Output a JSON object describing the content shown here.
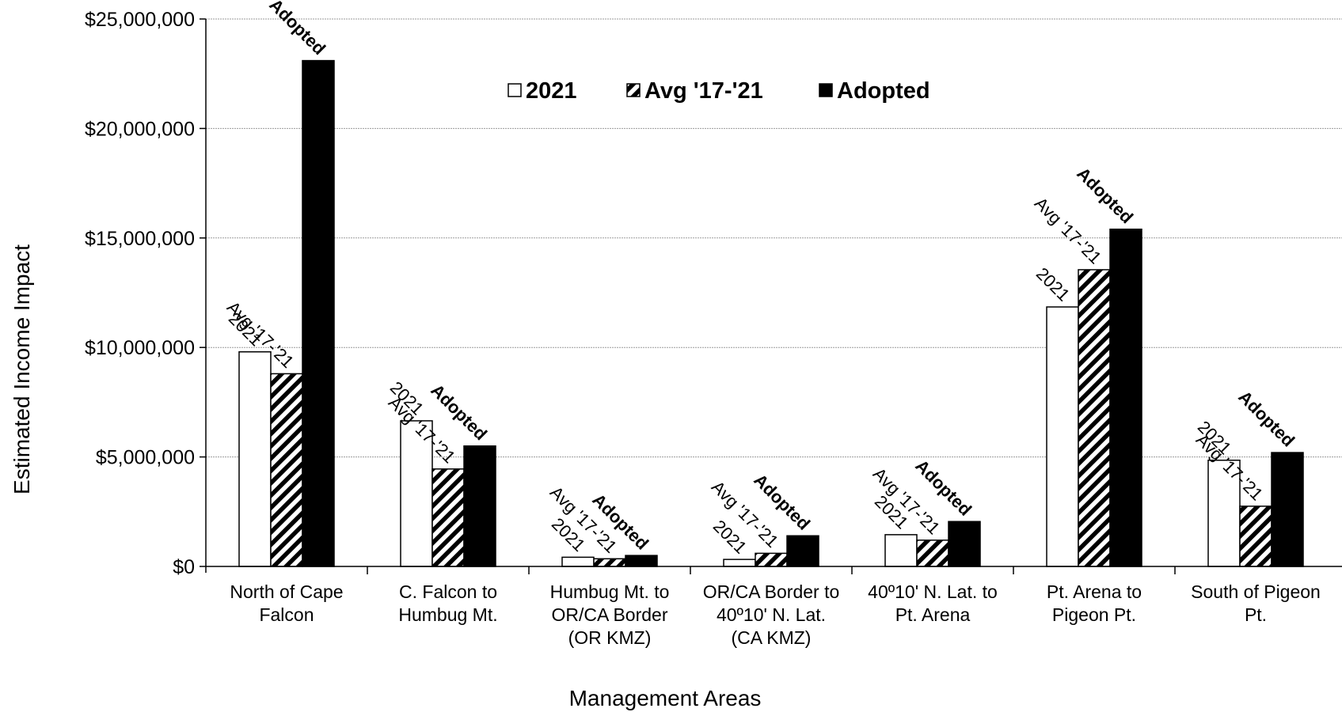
{
  "chart_data": {
    "type": "bar",
    "xlabel": "Management Areas",
    "ylabel": "Estimated Income Impact",
    "ylim": [
      0,
      25000000
    ],
    "yticks": [
      0,
      5000000,
      10000000,
      15000000,
      20000000,
      25000000
    ],
    "ytick_labels": [
      "$0",
      "$5,000,000",
      "$10,000,000",
      "$15,000,000",
      "$20,000,000",
      "$25,000,000"
    ],
    "grid": true,
    "legend_position": "top-center",
    "categories": [
      [
        "North of Cape",
        "Falcon"
      ],
      [
        "C. Falcon to",
        "Humbug Mt."
      ],
      [
        "Humbug Mt. to",
        "OR/CA Border",
        "(OR KMZ)"
      ],
      [
        "OR/CA Border to",
        "40º10' N. Lat.",
        "(CA KMZ)"
      ],
      [
        "40º10' N. Lat. to",
        "Pt. Arena"
      ],
      [
        "Pt. Arena to",
        "Pigeon Pt."
      ],
      [
        "South of Pigeon",
        "Pt."
      ]
    ],
    "series": [
      {
        "name": "2021",
        "bar_label": "2021",
        "fill": "white",
        "values": [
          9800000,
          6650000,
          420000,
          320000,
          1450000,
          11850000,
          4850000
        ]
      },
      {
        "name": "Avg '17-'21",
        "bar_label": "Avg '17-'21",
        "fill": "hatch",
        "values": [
          8800000,
          4450000,
          350000,
          600000,
          1200000,
          13550000,
          2750000
        ]
      },
      {
        "name": "Adopted",
        "bar_label": "Adopted",
        "fill": "black",
        "values": [
          23100000,
          5500000,
          500000,
          1400000,
          2050000,
          15400000,
          5200000
        ]
      }
    ],
    "colors": {
      "bar_stroke": "#000000",
      "solid": "#000000",
      "open": "#ffffff",
      "grid": "#9a9a9a"
    }
  }
}
